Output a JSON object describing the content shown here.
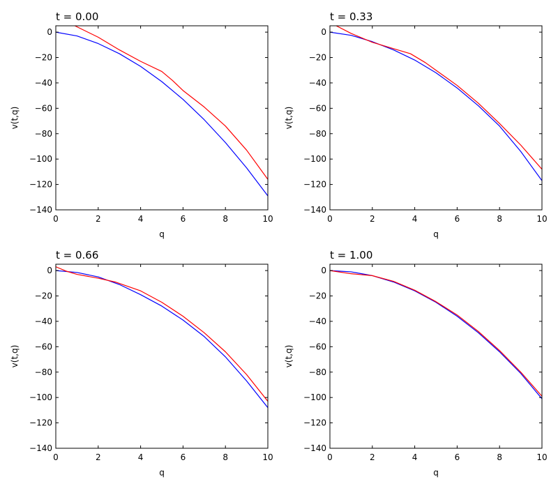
{
  "chart_data": [
    {
      "type": "line",
      "title": "t = 0.00",
      "xlabel": "q",
      "ylabel": "v(t,q)",
      "xlim": [
        0,
        10
      ],
      "ylim": [
        -140,
        5
      ],
      "xticks": [
        0,
        2,
        4,
        6,
        8,
        10
      ],
      "yticks": [
        0,
        -20,
        -40,
        -60,
        -80,
        -100,
        -120,
        -140
      ],
      "grid": false,
      "legend": "none",
      "series": [
        {
          "color": "#0000ff",
          "x": [
            0,
            1,
            2,
            3,
            4,
            5,
            6,
            7,
            8,
            9,
            10
          ],
          "y": [
            0,
            -3,
            -9,
            -17,
            -27,
            -39,
            -53,
            -69,
            -87,
            -107,
            -129
          ]
        },
        {
          "color": "#ff0000",
          "x": [
            0.9,
            2,
            3,
            4,
            5,
            5.5,
            6,
            7,
            8,
            9,
            10
          ],
          "y": [
            5,
            -4,
            -14,
            -23,
            -31,
            -38,
            -46,
            -59,
            -74,
            -93,
            -116
          ]
        }
      ]
    },
    {
      "type": "line",
      "title": "t = 0.33",
      "xlabel": "q",
      "ylabel": "v(t,q)",
      "xlim": [
        0,
        10
      ],
      "ylim": [
        -140,
        5
      ],
      "xticks": [
        0,
        2,
        4,
        6,
        8,
        10
      ],
      "yticks": [
        0,
        -20,
        -40,
        -60,
        -80,
        -100,
        -120,
        -140
      ],
      "grid": false,
      "legend": "none",
      "series": [
        {
          "color": "#0000ff",
          "x": [
            0,
            1,
            2,
            3,
            4,
            5,
            6,
            7,
            8,
            9,
            10
          ],
          "y": [
            0,
            -2.5,
            -7.5,
            -14,
            -22,
            -32,
            -44,
            -58,
            -74,
            -94,
            -117
          ]
        },
        {
          "color": "#ff0000",
          "x": [
            0.3,
            1,
            2,
            3,
            3.8,
            4.5,
            5,
            6,
            7,
            8,
            9,
            10
          ],
          "y": [
            5,
            -1,
            -8,
            -13,
            -17,
            -24,
            -30,
            -42,
            -56,
            -72,
            -89,
            -108
          ]
        }
      ]
    },
    {
      "type": "line",
      "title": "t = 0.66",
      "xlabel": "q",
      "ylabel": "v(t,q)",
      "xlim": [
        0,
        10
      ],
      "ylim": [
        -140,
        5
      ],
      "xticks": [
        0,
        2,
        4,
        6,
        8,
        10
      ],
      "yticks": [
        0,
        -20,
        -40,
        -60,
        -80,
        -100,
        -120,
        -140
      ],
      "grid": false,
      "legend": "none",
      "series": [
        {
          "color": "#0000ff",
          "x": [
            0,
            1,
            2,
            3,
            4,
            5,
            6,
            7,
            8,
            9,
            10
          ],
          "y": [
            0,
            -1.5,
            -5,
            -11,
            -19,
            -28,
            -39,
            -52,
            -68,
            -87,
            -108
          ]
        },
        {
          "color": "#ff0000",
          "x": [
            0,
            0.5,
            1,
            2,
            2.8,
            4,
            5,
            6,
            7,
            8,
            9,
            10
          ],
          "y": [
            3,
            -0.5,
            -3,
            -6,
            -9,
            -16,
            -25,
            -36,
            -49,
            -64,
            -82,
            -103
          ]
        }
      ]
    },
    {
      "type": "line",
      "title": "t = 1.00",
      "xlabel": "q",
      "ylabel": "v(t,q)",
      "xlim": [
        0,
        10
      ],
      "ylim": [
        -140,
        5
      ],
      "xticks": [
        0,
        2,
        4,
        6,
        8,
        10
      ],
      "yticks": [
        0,
        -20,
        -40,
        -60,
        -80,
        -100,
        -120,
        -140
      ],
      "grid": false,
      "legend": "none",
      "series": [
        {
          "color": "#0000ff",
          "x": [
            0,
            1,
            2,
            3,
            4,
            5,
            6,
            7,
            8,
            9,
            10
          ],
          "y": [
            0,
            -1,
            -4,
            -9,
            -16,
            -25,
            -36,
            -49,
            -64,
            -81,
            -101
          ]
        },
        {
          "color": "#ff0000",
          "x": [
            0,
            1,
            2,
            3,
            4,
            5,
            6,
            7,
            8,
            9,
            10
          ],
          "y": [
            0,
            -2.5,
            -4,
            -8.5,
            -15.5,
            -24.5,
            -35,
            -48,
            -63,
            -80,
            -99
          ]
        }
      ]
    }
  ]
}
